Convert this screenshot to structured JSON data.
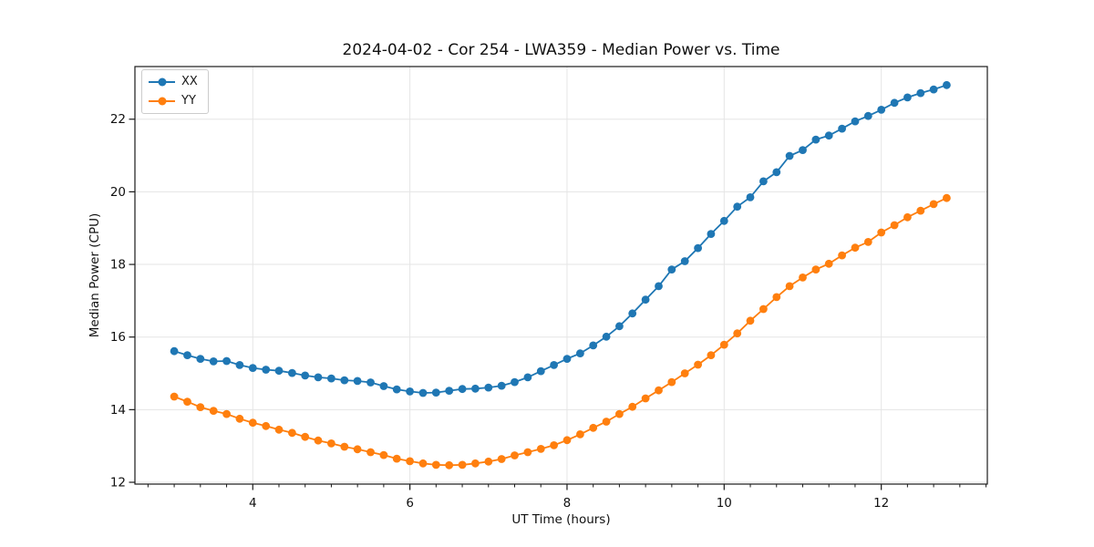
{
  "figure": {
    "title": "2024-04-02 - Cor 254 - LWA359 - Median Power vs. Time",
    "xlabel": "UT Time (hours)",
    "ylabel": "Median Power (CPU)",
    "background_color": "#ffffff",
    "spine_color": "#1a1a1a",
    "grid_color": "#e5e5e5",
    "text_color": "#111111"
  },
  "legend": {
    "position": "upper-left",
    "items": [
      {
        "label": "XX",
        "color": "#1f77b4"
      },
      {
        "label": "YY",
        "color": "#ff7f0e"
      }
    ]
  },
  "chart_data": {
    "type": "line",
    "title": "2024-04-02 - Cor 254 - LWA359 - Median Power vs. Time",
    "xlabel": "UT Time (hours)",
    "ylabel": "Median Power (CPU)",
    "xlim": [
      2.5,
      13.35
    ],
    "ylim": [
      11.95,
      23.45
    ],
    "x_major_ticks": [
      4,
      6,
      8,
      10,
      12
    ],
    "y_major_ticks": [
      12,
      14,
      16,
      18,
      20,
      22
    ],
    "x_minor_tick_step": 0.33333,
    "grid": true,
    "legend_position": "upper-left",
    "marker": "circle",
    "x": [
      3.0,
      3.167,
      3.333,
      3.5,
      3.667,
      3.833,
      4.0,
      4.167,
      4.333,
      4.5,
      4.667,
      4.833,
      5.0,
      5.167,
      5.333,
      5.5,
      5.667,
      5.833,
      6.0,
      6.167,
      6.333,
      6.5,
      6.667,
      6.833,
      7.0,
      7.167,
      7.333,
      7.5,
      7.667,
      7.833,
      8.0,
      8.167,
      8.333,
      8.5,
      8.667,
      8.833,
      9.0,
      9.167,
      9.333,
      9.5,
      9.667,
      9.833,
      10.0,
      10.167,
      10.333,
      10.5,
      10.667,
      10.833,
      11.0,
      11.167,
      11.333,
      11.5,
      11.667,
      11.833,
      12.0,
      12.167,
      12.333,
      12.5,
      12.667,
      12.833
    ],
    "series": [
      {
        "name": "XX",
        "color": "#1f77b4",
        "values": [
          15.61,
          15.5,
          15.4,
          15.33,
          15.34,
          15.23,
          15.15,
          15.1,
          15.07,
          15.01,
          14.94,
          14.89,
          14.86,
          14.81,
          14.79,
          14.75,
          14.65,
          14.56,
          14.5,
          14.46,
          14.47,
          14.52,
          14.57,
          14.58,
          14.61,
          14.66,
          14.76,
          14.89,
          15.06,
          15.23,
          15.4,
          15.55,
          15.77,
          16.01,
          16.3,
          16.65,
          17.03,
          17.4,
          17.86,
          18.09,
          18.45,
          18.84,
          19.2,
          19.59,
          19.85,
          20.29,
          20.54,
          20.99,
          21.15,
          21.44,
          21.55,
          21.74,
          21.94,
          22.09,
          22.26,
          22.45,
          22.6,
          22.72,
          22.82,
          22.94
        ]
      },
      {
        "name": "YY",
        "color": "#ff7f0e",
        "values": [
          14.36,
          14.22,
          14.07,
          13.97,
          13.88,
          13.75,
          13.64,
          13.55,
          13.45,
          13.36,
          13.25,
          13.15,
          13.07,
          12.98,
          12.91,
          12.83,
          12.75,
          12.65,
          12.58,
          12.52,
          12.48,
          12.47,
          12.48,
          12.52,
          12.57,
          12.64,
          12.74,
          12.83,
          12.92,
          13.02,
          13.16,
          13.32,
          13.5,
          13.67,
          13.88,
          14.08,
          14.31,
          14.53,
          14.76,
          15.0,
          15.24,
          15.5,
          15.79,
          16.1,
          16.45,
          16.77,
          17.1,
          17.4,
          17.64,
          17.86,
          18.02,
          18.25,
          18.46,
          18.62,
          18.88,
          19.08,
          19.3,
          19.48,
          19.66,
          19.83
        ]
      }
    ]
  }
}
